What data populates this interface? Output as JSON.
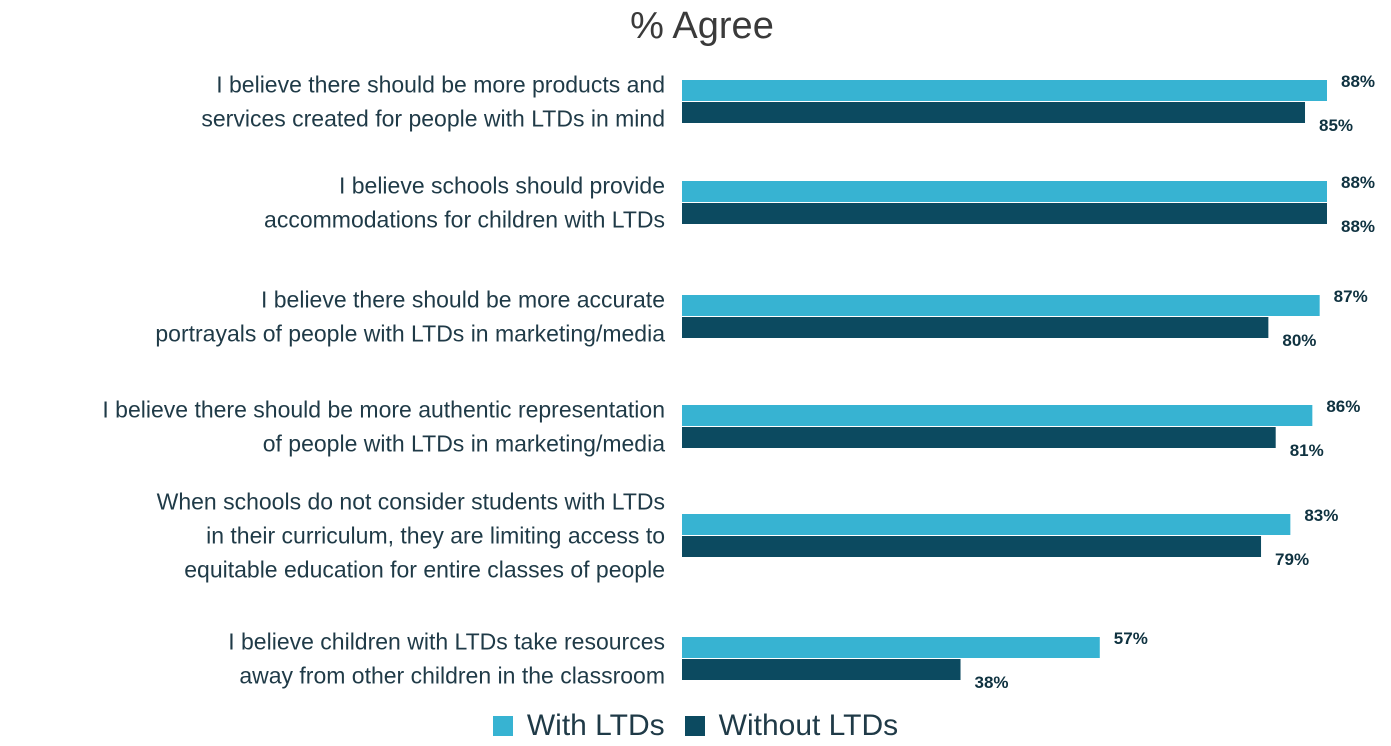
{
  "chart_data": {
    "type": "bar",
    "orientation": "horizontal",
    "title": "% Agree",
    "categories": [
      [
        "I believe there should be more products and",
        "services created for people with LTDs in mind"
      ],
      [
        "I believe schools should provide",
        "accommodations for children with LTDs"
      ],
      [
        "I believe there should be more accurate",
        "portrayals of people with LTDs in marketing/media"
      ],
      [
        "I believe there should be more authentic representation",
        "of people with LTDs in marketing/media"
      ],
      [
        "When schools do not consider students with LTDs",
        "in their curriculum, they are limiting access to",
        "equitable education for entire classes of people"
      ],
      [
        "I believe children with LTDs take resources",
        "away from other children in the classroom"
      ]
    ],
    "series": [
      {
        "name": "With LTDs",
        "color": "#37b3d2",
        "values": [
          88,
          88,
          87,
          86,
          83,
          57
        ]
      },
      {
        "name": "Without LTDs",
        "color": "#0c4a60",
        "values": [
          85,
          88,
          80,
          81,
          79,
          38
        ]
      }
    ],
    "value_suffix": "%",
    "xlim": [
      0,
      88
    ],
    "grid": false,
    "legend_position": "bottom"
  }
}
